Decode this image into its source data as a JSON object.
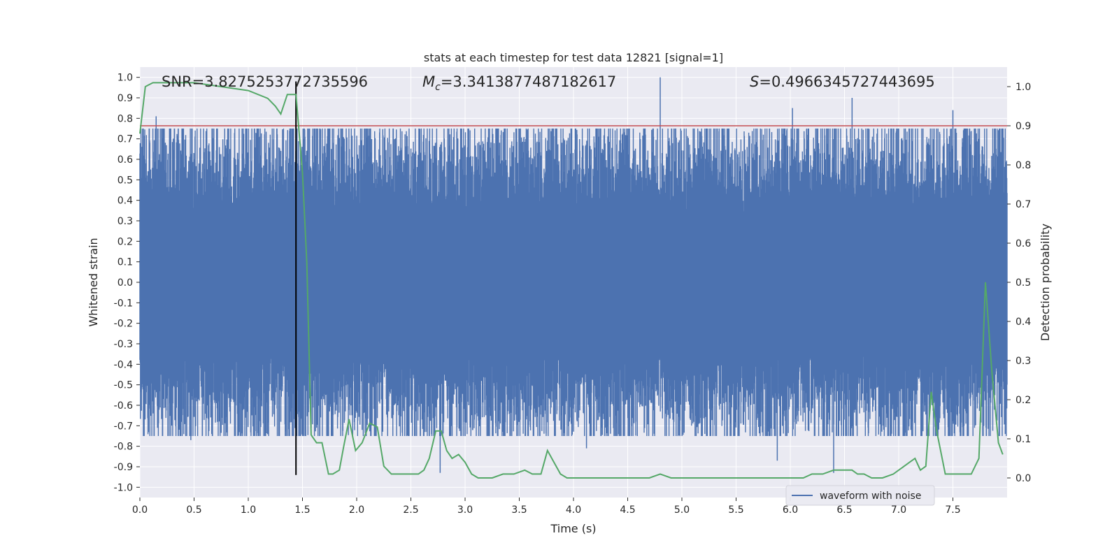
{
  "chart_data": {
    "type": "line",
    "title": "stats at each timestep for test data 12821 [signal=1]",
    "xlabel": "Time (s)",
    "ylabel": "Whitened strain",
    "ylabel_right": "Detection probability",
    "xlim": [
      0.0,
      8.0
    ],
    "ylim": [
      -1.05,
      1.05
    ],
    "ylim_right": [
      -0.05,
      1.05
    ],
    "xticks": [
      "0.0",
      "0.5",
      "1.0",
      "1.5",
      "2.0",
      "2.5",
      "3.0",
      "3.5",
      "4.0",
      "4.5",
      "5.0",
      "5.5",
      "6.0",
      "6.5",
      "7.0",
      "7.5"
    ],
    "yticks": [
      "1.0",
      "0.9",
      "0.8",
      "0.7",
      "0.6",
      "0.5",
      "0.4",
      "0.3",
      "0.2",
      "0.1",
      "0.0",
      "-0.1",
      "-0.2",
      "-0.3",
      "-0.4",
      "-0.5",
      "-0.6",
      "-0.7",
      "-0.8",
      "-0.9",
      "-1.0"
    ],
    "yticks_right": [
      "1.0",
      "0.9",
      "0.8",
      "0.7",
      "0.6",
      "0.5",
      "0.4",
      "0.3",
      "0.2",
      "0.1",
      "0.0"
    ],
    "grid": true,
    "legend": {
      "placement": "lower-right",
      "entries": [
        "waveform with noise"
      ]
    },
    "annotations": {
      "snr": "SNR=3.8275253772735596",
      "mc_symbol": "M",
      "mc_sub": "c",
      "mc_value": "=3.3413877487182617",
      "s_symbol": "S",
      "s_value": "=0.4966345727443695"
    },
    "threshold_line": {
      "value_right_axis": 0.9,
      "color": "#c44e52"
    },
    "event_marker": {
      "x": 1.44,
      "color": "#000000"
    },
    "colors": {
      "waveform": "#4c72b0",
      "probability": "#55a868",
      "background": "#eaeaf2",
      "grid": "#ffffff"
    },
    "waveform_peaks": [
      {
        "x": 0.15,
        "y": 0.81
      },
      {
        "x": 1.08,
        "y": 0.75
      },
      {
        "x": 1.44,
        "y": 0.98
      },
      {
        "x": 4.8,
        "y": 1.0
      },
      {
        "x": 6.02,
        "y": 0.85
      },
      {
        "x": 6.57,
        "y": 0.9
      },
      {
        "x": 7.5,
        "y": 0.84
      },
      {
        "x": 2.77,
        "y": -0.93
      },
      {
        "x": 6.4,
        "y": -0.93
      },
      {
        "x": 5.88,
        "y": -0.87
      },
      {
        "x": 0.47,
        "y": -0.77
      },
      {
        "x": 4.12,
        "y": -0.81
      }
    ],
    "series": [
      {
        "name": "Detection probability",
        "x": [
          0.0,
          0.05,
          0.12,
          0.3,
          0.5,
          0.75,
          1.0,
          1.18,
          1.25,
          1.3,
          1.36,
          1.44,
          1.5,
          1.54,
          1.58,
          1.63,
          1.68,
          1.74,
          1.78,
          1.84,
          1.88,
          1.93,
          1.99,
          2.05,
          2.12,
          2.19,
          2.25,
          2.32,
          2.38,
          2.44,
          2.5,
          2.57,
          2.62,
          2.67,
          2.73,
          2.78,
          2.83,
          2.88,
          2.94,
          3.0,
          3.06,
          3.12,
          3.18,
          3.25,
          3.35,
          3.45,
          3.55,
          3.62,
          3.7,
          3.76,
          3.82,
          3.88,
          3.94,
          4.0,
          4.2,
          4.4,
          4.6,
          4.7,
          4.8,
          4.9,
          5.0,
          5.1,
          5.2,
          5.35,
          5.5,
          5.65,
          5.8,
          5.95,
          6.05,
          6.12,
          6.2,
          6.3,
          6.4,
          6.5,
          6.57,
          6.62,
          6.68,
          6.75,
          6.85,
          6.95,
          7.05,
          7.1,
          7.15,
          7.2,
          7.25,
          7.3,
          7.35,
          7.43,
          7.5,
          7.55,
          7.62,
          7.67,
          7.74,
          7.8,
          7.86,
          7.92,
          7.96
        ],
        "values": [
          0.88,
          1.0,
          1.01,
          1.01,
          1.01,
          1.0,
          0.99,
          0.97,
          0.95,
          0.93,
          0.98,
          0.98,
          0.78,
          0.55,
          0.11,
          0.09,
          0.09,
          0.01,
          0.01,
          0.02,
          0.08,
          0.15,
          0.07,
          0.09,
          0.14,
          0.13,
          0.03,
          0.01,
          0.01,
          0.01,
          0.01,
          0.01,
          0.02,
          0.05,
          0.12,
          0.12,
          0.07,
          0.05,
          0.06,
          0.04,
          0.01,
          0.0,
          0.0,
          0.0,
          0.01,
          0.01,
          0.02,
          0.01,
          0.01,
          0.07,
          0.04,
          0.01,
          0.0,
          0.0,
          0.0,
          0.0,
          0.0,
          0.0,
          0.01,
          0.0,
          0.0,
          0.0,
          0.0,
          0.0,
          0.0,
          0.0,
          0.0,
          0.0,
          0.0,
          0.0,
          0.01,
          0.01,
          0.02,
          0.02,
          0.02,
          0.01,
          0.01,
          0.0,
          0.0,
          0.01,
          0.03,
          0.04,
          0.05,
          0.02,
          0.03,
          0.22,
          0.12,
          0.01,
          0.01,
          0.01,
          0.01,
          0.01,
          0.05,
          0.5,
          0.27,
          0.09,
          0.06
        ]
      }
    ]
  }
}
